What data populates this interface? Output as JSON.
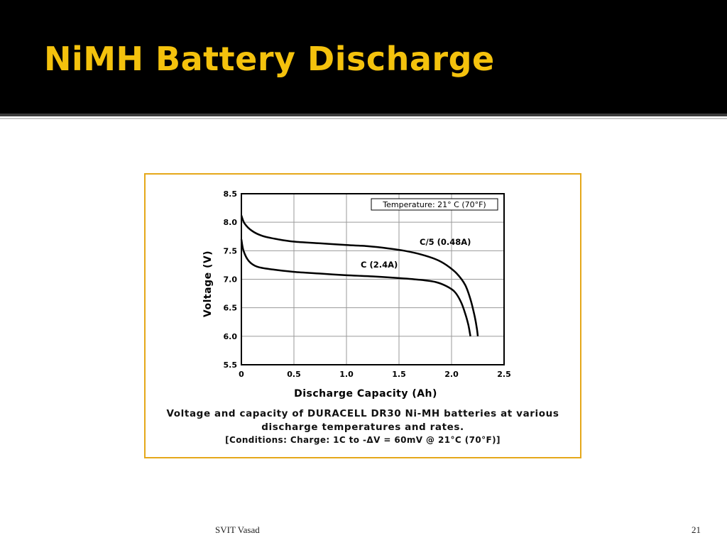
{
  "slide": {
    "title": "NiMH Battery Discharge",
    "footer_left": "SVIT Vasad",
    "footer_right": "21"
  },
  "colors": {
    "title_background": "#000000",
    "title_text": "#f4c20d",
    "frame_border": "#e5a81a",
    "grid": "#9a9a9a",
    "curve": "#000000"
  },
  "chart_data": {
    "type": "line",
    "xlabel": "Discharge Capacity (Ah)",
    "ylabel": "Voltage (V)",
    "xlim": [
      0,
      2.5
    ],
    "ylim": [
      5.5,
      8.5
    ],
    "x_ticks": [
      "0",
      "0.5",
      "1.0",
      "1.5",
      "2.0",
      "2.5"
    ],
    "y_ticks": [
      "5.5",
      "6.0",
      "6.5",
      "7.0",
      "7.5",
      "8.0",
      "8.5"
    ],
    "x_tick_values": [
      0,
      0.5,
      1.0,
      1.5,
      2.0,
      2.5
    ],
    "y_tick_values": [
      5.5,
      6.0,
      6.5,
      7.0,
      7.5,
      8.0,
      8.5
    ],
    "grid": true,
    "legend_box": "Temperature: 21° C (70°F)",
    "series": [
      {
        "name": "C/5 (0.48A)",
        "points": [
          [
            0.0,
            8.12
          ],
          [
            0.03,
            7.98
          ],
          [
            0.1,
            7.85
          ],
          [
            0.2,
            7.76
          ],
          [
            0.35,
            7.7
          ],
          [
            0.5,
            7.66
          ],
          [
            0.75,
            7.63
          ],
          [
            1.0,
            7.6
          ],
          [
            1.2,
            7.58
          ],
          [
            1.4,
            7.54
          ],
          [
            1.55,
            7.5
          ],
          [
            1.7,
            7.44
          ],
          [
            1.85,
            7.35
          ],
          [
            1.95,
            7.25
          ],
          [
            2.05,
            7.1
          ],
          [
            2.13,
            6.9
          ],
          [
            2.18,
            6.65
          ],
          [
            2.22,
            6.35
          ],
          [
            2.24,
            6.15
          ],
          [
            2.25,
            6.0
          ]
        ]
      },
      {
        "name": "C (2.4A)",
        "points": [
          [
            0.0,
            7.7
          ],
          [
            0.02,
            7.5
          ],
          [
            0.07,
            7.32
          ],
          [
            0.15,
            7.22
          ],
          [
            0.3,
            7.17
          ],
          [
            0.5,
            7.13
          ],
          [
            0.75,
            7.1
          ],
          [
            1.0,
            7.07
          ],
          [
            1.25,
            7.05
          ],
          [
            1.5,
            7.02
          ],
          [
            1.7,
            6.99
          ],
          [
            1.85,
            6.95
          ],
          [
            1.95,
            6.88
          ],
          [
            2.03,
            6.78
          ],
          [
            2.09,
            6.6
          ],
          [
            2.13,
            6.4
          ],
          [
            2.16,
            6.2
          ],
          [
            2.18,
            6.0
          ]
        ]
      }
    ],
    "caption": [
      "Voltage and capacity of DURACELL DR30 Ni-MH batteries at various",
      "discharge temperatures and rates.",
      "[Conditions: Charge:  1C  to -ΔV = 60mV @ 21°C (70°F)]"
    ]
  }
}
